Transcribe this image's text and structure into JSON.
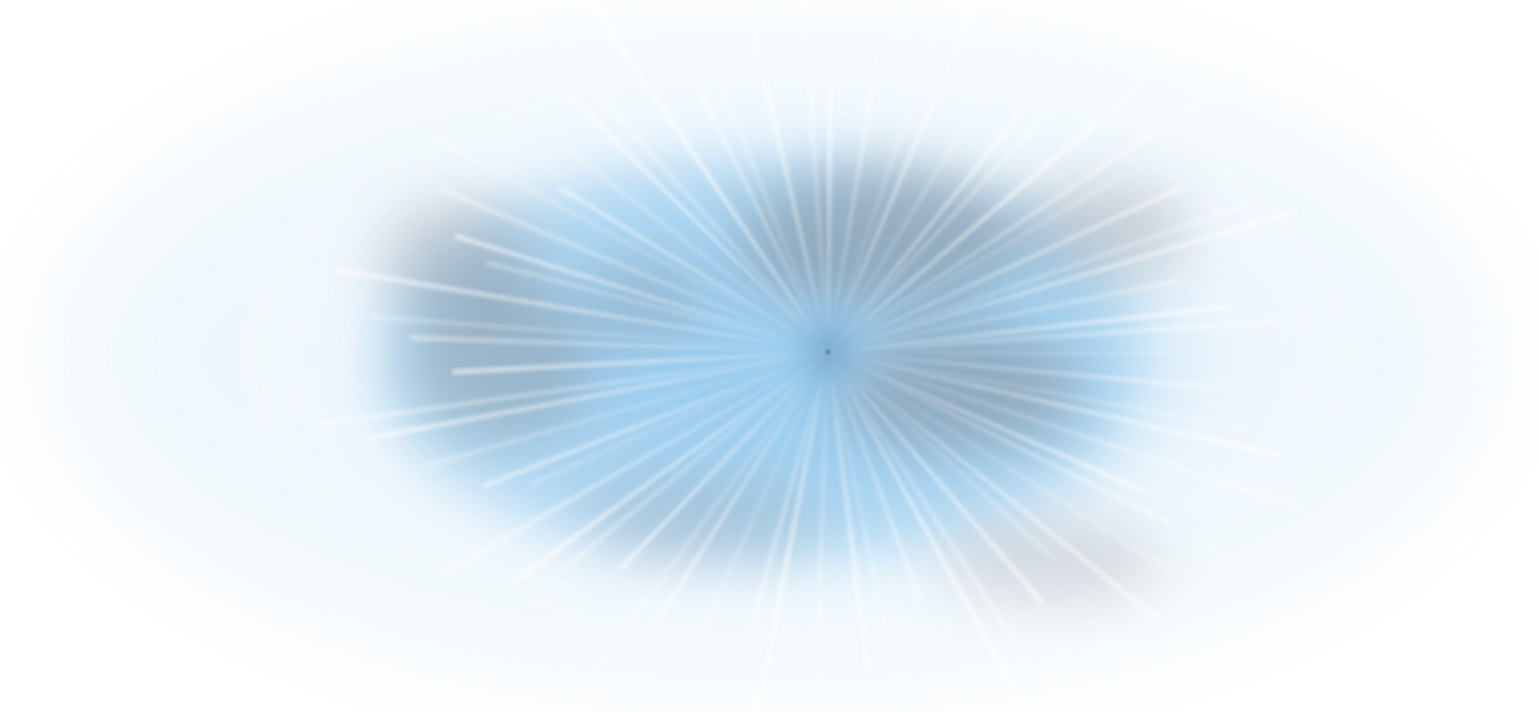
{
  "scene": {
    "subject": "starburst",
    "colors": {
      "background": "#ffffff",
      "glow_core": "#8ec6ec",
      "glow_mid": "#b9dcf4",
      "glow_outer": "#e4f2fb",
      "smoke": "#7d7f86",
      "rays": "#ffffff",
      "center": "#4f86b8"
    }
  }
}
